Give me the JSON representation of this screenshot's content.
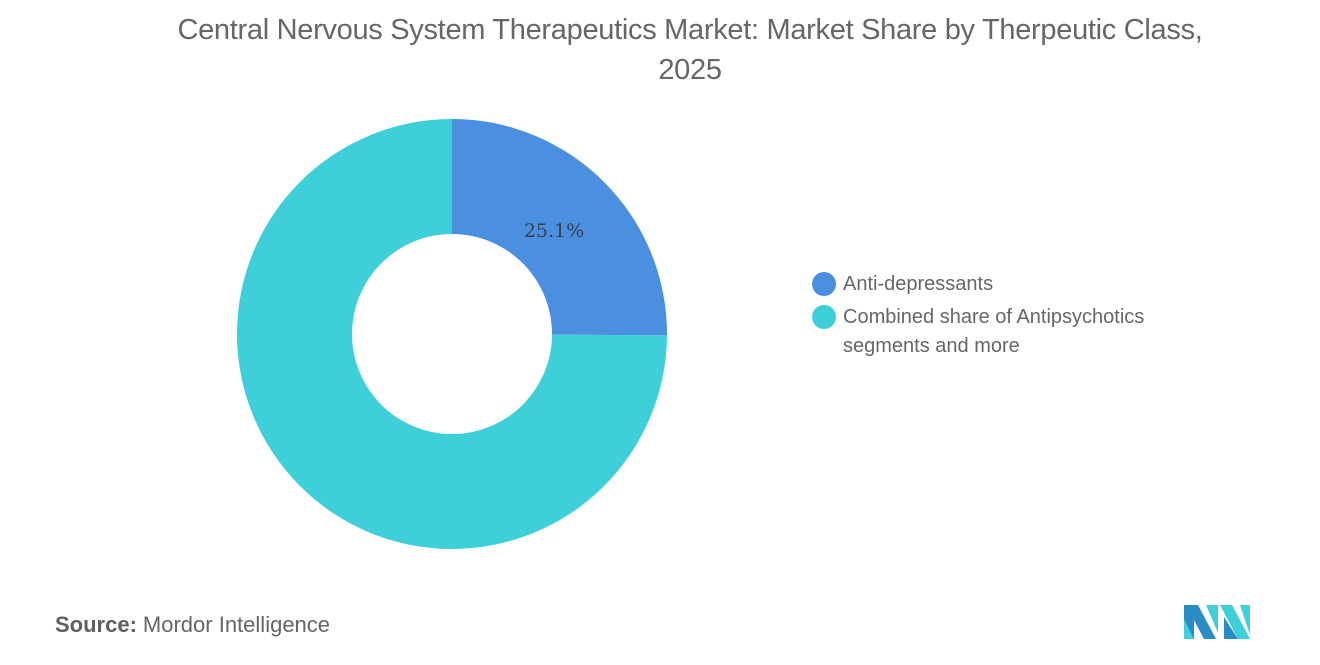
{
  "header": {
    "title": "Central Nervous System Therapeutics Market: Market Share by Therpeutic Class, 2025"
  },
  "chart_data": {
    "type": "pie",
    "variant": "donut",
    "title": "Central Nervous System Therapeutics Market: Market Share by Therpeutic Class, 2025",
    "categories": [
      "Anti-depressants",
      "Combined share of Antipsychotics segments and more"
    ],
    "values": [
      25.1,
      74.9
    ],
    "colors": [
      "#4a8fe0",
      "#3fcfd9"
    ],
    "data_labels": [
      "25.1%",
      ""
    ],
    "legend_position": "right",
    "start_angle": "12 o'clock, clockwise"
  },
  "legend": {
    "items": [
      {
        "label": "Anti-depressants",
        "color": "#4a8fe0"
      },
      {
        "label": "Combined share of Antipsychotics segments and more",
        "color": "#3fcfd9"
      }
    ]
  },
  "labels": {
    "slice0": "25.1%"
  },
  "footer": {
    "source_label": "Source:",
    "source_value": "Mordor Intelligence"
  },
  "logo": {
    "icon": "mordor-intelligence-logo-icon",
    "colors": [
      "#2a8cc4",
      "#3fcfd9"
    ]
  }
}
